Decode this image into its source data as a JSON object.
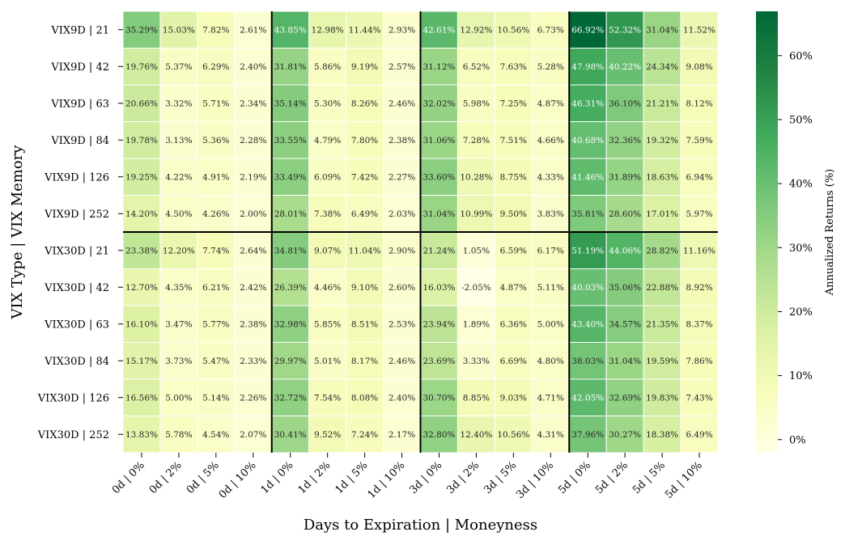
{
  "chart_data": {
    "type": "heatmap",
    "xlabel": "Days to Expiration | Moneyness",
    "ylabel": "VIX Type | VIX Memory",
    "colorbar_label": "Annualized Returns (%)",
    "colorbar_ticks": [
      "0%",
      "10%",
      "20%",
      "30%",
      "40%",
      "50%",
      "60%"
    ],
    "colorbar_tick_values": [
      0,
      10,
      20,
      30,
      40,
      50,
      60
    ],
    "color_range": [
      -2.05,
      66.92
    ],
    "colormap": [
      "#ffffe5",
      "#f7fcb9",
      "#d9f0a3",
      "#addd8e",
      "#78c679",
      "#41ab5d",
      "#238443",
      "#006837"
    ],
    "x_categories": [
      "0d | 0%",
      "0d | 2%",
      "0d | 5%",
      "0d | 10%",
      "1d | 0%",
      "1d | 2%",
      "1d | 5%",
      "1d | 10%",
      "3d | 0%",
      "3d | 2%",
      "3d | 5%",
      "3d | 10%",
      "5d | 0%",
      "5d | 2%",
      "5d | 5%",
      "5d | 10%"
    ],
    "y_categories": [
      "VIX9D | 21",
      "VIX9D | 42",
      "VIX9D | 63",
      "VIX9D | 84",
      "VIX9D | 126",
      "VIX9D | 252",
      "VIX30D | 21",
      "VIX30D | 42",
      "VIX30D | 63",
      "VIX30D | 84",
      "VIX30D | 126",
      "VIX30D | 252"
    ],
    "values": [
      [
        35.29,
        15.03,
        7.82,
        2.61,
        43.85,
        12.98,
        11.44,
        2.93,
        42.61,
        12.92,
        10.56,
        6.73,
        66.92,
        52.32,
        31.04,
        11.52
      ],
      [
        19.76,
        5.37,
        6.29,
        2.4,
        31.81,
        5.86,
        9.19,
        2.57,
        31.12,
        6.52,
        7.63,
        5.28,
        47.98,
        40.22,
        24.34,
        9.08
      ],
      [
        20.66,
        3.32,
        5.71,
        2.34,
        35.14,
        5.3,
        8.26,
        2.46,
        32.02,
        5.98,
        7.25,
        4.87,
        46.31,
        36.1,
        21.21,
        8.12
      ],
      [
        19.78,
        3.13,
        5.36,
        2.28,
        33.55,
        4.79,
        7.8,
        2.38,
        31.06,
        7.28,
        7.51,
        4.66,
        40.68,
        32.36,
        19.32,
        7.59
      ],
      [
        19.25,
        4.22,
        4.91,
        2.19,
        33.49,
        6.09,
        7.42,
        2.27,
        33.6,
        10.28,
        8.75,
        4.33,
        41.46,
        31.89,
        18.63,
        6.94
      ],
      [
        14.2,
        4.5,
        4.26,
        2.0,
        28.01,
        7.38,
        6.49,
        2.03,
        31.04,
        10.99,
        9.5,
        3.83,
        35.81,
        28.6,
        17.01,
        5.97
      ],
      [
        23.38,
        12.2,
        7.74,
        2.64,
        34.81,
        9.07,
        11.04,
        2.9,
        21.24,
        1.05,
        6.59,
        6.17,
        51.19,
        44.06,
        28.82,
        11.16
      ],
      [
        12.7,
        4.35,
        6.21,
        2.42,
        26.39,
        4.46,
        9.1,
        2.6,
        16.03,
        -2.05,
        4.87,
        5.11,
        40.03,
        35.06,
        22.88,
        8.92
      ],
      [
        16.1,
        3.47,
        5.77,
        2.38,
        32.98,
        5.85,
        8.51,
        2.53,
        23.94,
        1.89,
        6.36,
        5.0,
        43.4,
        34.57,
        21.35,
        8.37
      ],
      [
        15.17,
        3.73,
        5.47,
        2.33,
        29.97,
        5.01,
        8.17,
        2.46,
        23.69,
        3.33,
        6.69,
        4.8,
        38.03,
        31.04,
        19.59,
        7.86
      ],
      [
        16.56,
        5.0,
        5.14,
        2.26,
        32.72,
        7.54,
        8.08,
        2.4,
        30.7,
        8.85,
        9.03,
        4.71,
        42.05,
        32.69,
        19.83,
        7.43
      ],
      [
        13.83,
        5.78,
        4.54,
        2.07,
        30.41,
        9.52,
        7.24,
        2.17,
        32.8,
        12.4,
        10.56,
        4.31,
        37.96,
        30.27,
        18.38,
        6.49
      ]
    ],
    "vertical_separators_after_column": [
      3,
      7,
      11
    ],
    "horizontal_separators_after_row": [
      5
    ]
  }
}
